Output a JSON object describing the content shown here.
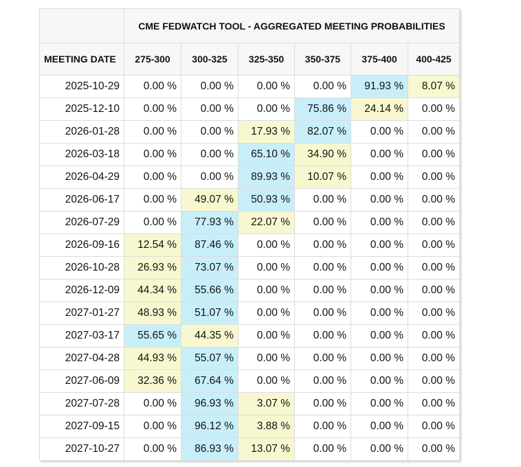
{
  "table": {
    "title": "CME FEDWATCH TOOL - AGGREGATED MEETING PROBABILITIES",
    "header": [
      "MEETING DATE",
      "275-300",
      "300-325",
      "325-350",
      "350-375",
      "375-400",
      "400-425"
    ],
    "highlight_colors": [
      "#c8eff9",
      "#f8f8d0"
    ],
    "rows": [
      [
        "2025-10-29",
        "0.00 %",
        "0.00 %",
        "0.00 %",
        "0.00 %",
        "91.93 %",
        "8.07 %"
      ],
      [
        "2025-12-10",
        "0.00 %",
        "0.00 %",
        "0.00 %",
        "75.86 %",
        "24.14 %",
        "0.00 %"
      ],
      [
        "2026-01-28",
        "0.00 %",
        "0.00 %",
        "17.93 %",
        "82.07 %",
        "0.00 %",
        "0.00 %"
      ],
      [
        "2026-03-18",
        "0.00 %",
        "0.00 %",
        "65.10 %",
        "34.90 %",
        "0.00 %",
        "0.00 %"
      ],
      [
        "2026-04-29",
        "0.00 %",
        "0.00 %",
        "89.93 %",
        "10.07 %",
        "0.00 %",
        "0.00 %"
      ],
      [
        "2026-06-17",
        "0.00 %",
        "49.07 %",
        "50.93 %",
        "0.00 %",
        "0.00 %",
        "0.00 %"
      ],
      [
        "2026-07-29",
        "0.00 %",
        "77.93 %",
        "22.07 %",
        "0.00 %",
        "0.00 %",
        "0.00 %"
      ],
      [
        "2026-09-16",
        "12.54 %",
        "87.46 %",
        "0.00 %",
        "0.00 %",
        "0.00 %",
        "0.00 %"
      ],
      [
        "2026-10-28",
        "26.93 %",
        "73.07 %",
        "0.00 %",
        "0.00 %",
        "0.00 %",
        "0.00 %"
      ],
      [
        "2026-12-09",
        "44.34 %",
        "55.66 %",
        "0.00 %",
        "0.00 %",
        "0.00 %",
        "0.00 %"
      ],
      [
        "2027-01-27",
        "48.93 %",
        "51.07 %",
        "0.00 %",
        "0.00 %",
        "0.00 %",
        "0.00 %"
      ],
      [
        "2027-03-17",
        "55.65 %",
        "44.35 %",
        "0.00 %",
        "0.00 %",
        "0.00 %",
        "0.00 %"
      ],
      [
        "2027-04-28",
        "44.93 %",
        "55.07 %",
        "0.00 %",
        "0.00 %",
        "0.00 %",
        "0.00 %"
      ],
      [
        "2027-06-09",
        "32.36 %",
        "67.64 %",
        "0.00 %",
        "0.00 %",
        "0.00 %",
        "0.00 %"
      ],
      [
        "2027-07-28",
        "0.00 %",
        "96.93 %",
        "3.07 %",
        "0.00 %",
        "0.00 %",
        "0.00 %"
      ],
      [
        "2027-09-15",
        "0.00 %",
        "96.12 %",
        "3.88 %",
        "0.00 %",
        "0.00 %",
        "0.00 %"
      ],
      [
        "2027-10-27",
        "0.00 %",
        "86.93 %",
        "13.07 %",
        "0.00 %",
        "0.00 %",
        "0.00 %"
      ]
    ]
  }
}
